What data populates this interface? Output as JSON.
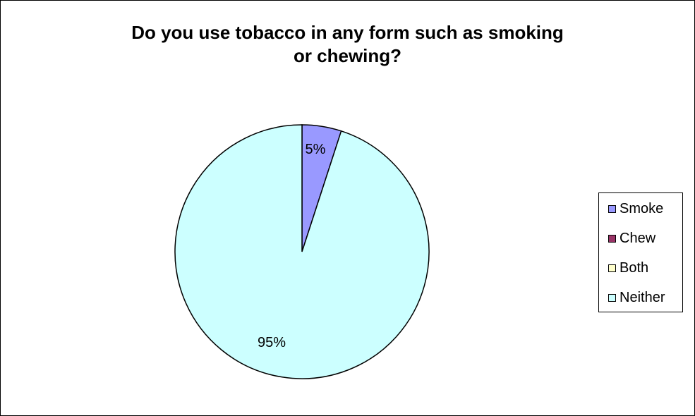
{
  "chart_data": {
    "type": "pie",
    "title": "Do you use tobacco in any form such as smoking or chewing?",
    "title_lines": [
      "Do you use tobacco in any form such as smoking",
      "or chewing?"
    ],
    "categories": [
      "Smoke",
      "Chew",
      "Both",
      "Neither"
    ],
    "values": [
      5,
      0,
      0,
      95
    ],
    "value_labels": [
      "5%",
      "",
      "",
      "95%"
    ],
    "colors": [
      "#9999ff",
      "#993366",
      "#ffffcc",
      "#ccffff"
    ],
    "legend_position": "right",
    "start_angle": "12 o'clock, clockwise"
  }
}
